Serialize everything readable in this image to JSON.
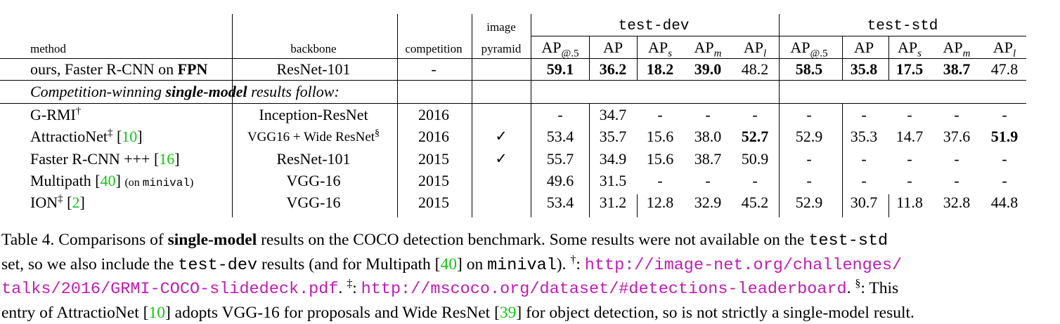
{
  "table": {
    "header": {
      "method": "method",
      "backbone": "backbone",
      "competition": "competition",
      "image": "image",
      "pyramid": "pyramid",
      "test_dev": "test-dev",
      "test_std": "test-std",
      "ap_cols": [
        {
          "base": "AP",
          "sub": "@.5"
        },
        {
          "base": "AP",
          "sub": ""
        },
        {
          "base": "AP",
          "sub": "s"
        },
        {
          "base": "AP",
          "sub": "m"
        },
        {
          "base": "AP",
          "sub": "l"
        }
      ]
    },
    "ours": {
      "method_prefix": "ours, Faster R-CNN on ",
      "method_bold": "FPN",
      "backbone": "ResNet-101",
      "competition": "-",
      "pyramid": "",
      "dev": [
        "59.1",
        "36.2",
        "18.2",
        "39.0",
        "48.2"
      ],
      "std": [
        "58.5",
        "35.8",
        "17.5",
        "38.7",
        "47.8"
      ]
    },
    "section_label": {
      "before": "Competition-winning ",
      "bold": "single-model",
      "after": " results follow:"
    },
    "rows": [
      {
        "name": "G-RMI",
        "mark": "†",
        "ref": "",
        "note": "",
        "backbone": "Inception-ResNet",
        "backbone_mark": "",
        "competition": "2016",
        "pyramid": "",
        "dev": [
          "-",
          "34.7",
          "-",
          "-",
          "-"
        ],
        "std": [
          "-",
          "-",
          "-",
          "-",
          "-"
        ]
      },
      {
        "name": "AttractioNet",
        "mark": "‡",
        "ref": "10",
        "note": "",
        "backbone": "VGG16 + Wide ResNet",
        "backbone_mark": "§",
        "competition": "2016",
        "pyramid": "✓",
        "dev": [
          "53.4",
          "35.7",
          "15.6",
          "38.0",
          "52.7"
        ],
        "std": [
          "52.9",
          "35.3",
          "14.7",
          "37.6",
          "51.9"
        ]
      },
      {
        "name": "Faster R-CNN +++",
        "mark": "",
        "ref": "16",
        "note": "",
        "backbone": "ResNet-101",
        "backbone_mark": "",
        "competition": "2015",
        "pyramid": "✓",
        "dev": [
          "55.7",
          "34.9",
          "15.6",
          "38.7",
          "50.9"
        ],
        "std": [
          "-",
          "-",
          "-",
          "-",
          "-"
        ]
      },
      {
        "name": "Multipath",
        "mark": "",
        "ref": "40",
        "note_pre": "(on ",
        "note_mono": "minival",
        "note_post": ")",
        "backbone": "VGG-16",
        "backbone_mark": "",
        "competition": "2015",
        "pyramid": "",
        "dev": [
          "49.6",
          "31.5",
          "-",
          "-",
          "-"
        ],
        "std": [
          "-",
          "-",
          "-",
          "-",
          "-"
        ]
      },
      {
        "name": "ION",
        "mark": "‡",
        "ref": "2",
        "note": "",
        "backbone": "VGG-16",
        "backbone_mark": "",
        "competition": "2015",
        "pyramid": "",
        "dev": [
          "53.4",
          "31.2",
          "12.8",
          "32.9",
          "45.2"
        ],
        "std": [
          "52.9",
          "30.7",
          "11.8",
          "32.8",
          "44.8"
        ]
      }
    ]
  },
  "caption": {
    "label": "Table 4.",
    "t1": " Comparisons of ",
    "b1": "single-model",
    "t2": " results on the COCO detection benchmark.  Some results were not available on the ",
    "m1": "test-std",
    "t3": "set, so we also include the ",
    "m2": "test-dev",
    "t4": " results (and for Multipath [",
    "r40": "40",
    "t5": "] on ",
    "m3": "minival",
    "t6": "). ",
    "dagger": "†",
    "t7": ": ",
    "url1a": "http://image-net.org/challenges/",
    "url1b": "talks/2016/GRMI-COCO-slidedeck.pdf",
    "t8": ". ",
    "ddagger": "‡",
    "t9": ": ",
    "url2": "http://mscoco.org/dataset/#detections-leaderboard",
    "t10": ". ",
    "sect": "§",
    "t11": ": This",
    "t12": "entry of AttractioNet [",
    "r10": "10",
    "t13": "] adopts VGG-16 for proposals and Wide ResNet [",
    "r39": "39",
    "t14": "] for object detection, so is not strictly a single-model result."
  }
}
